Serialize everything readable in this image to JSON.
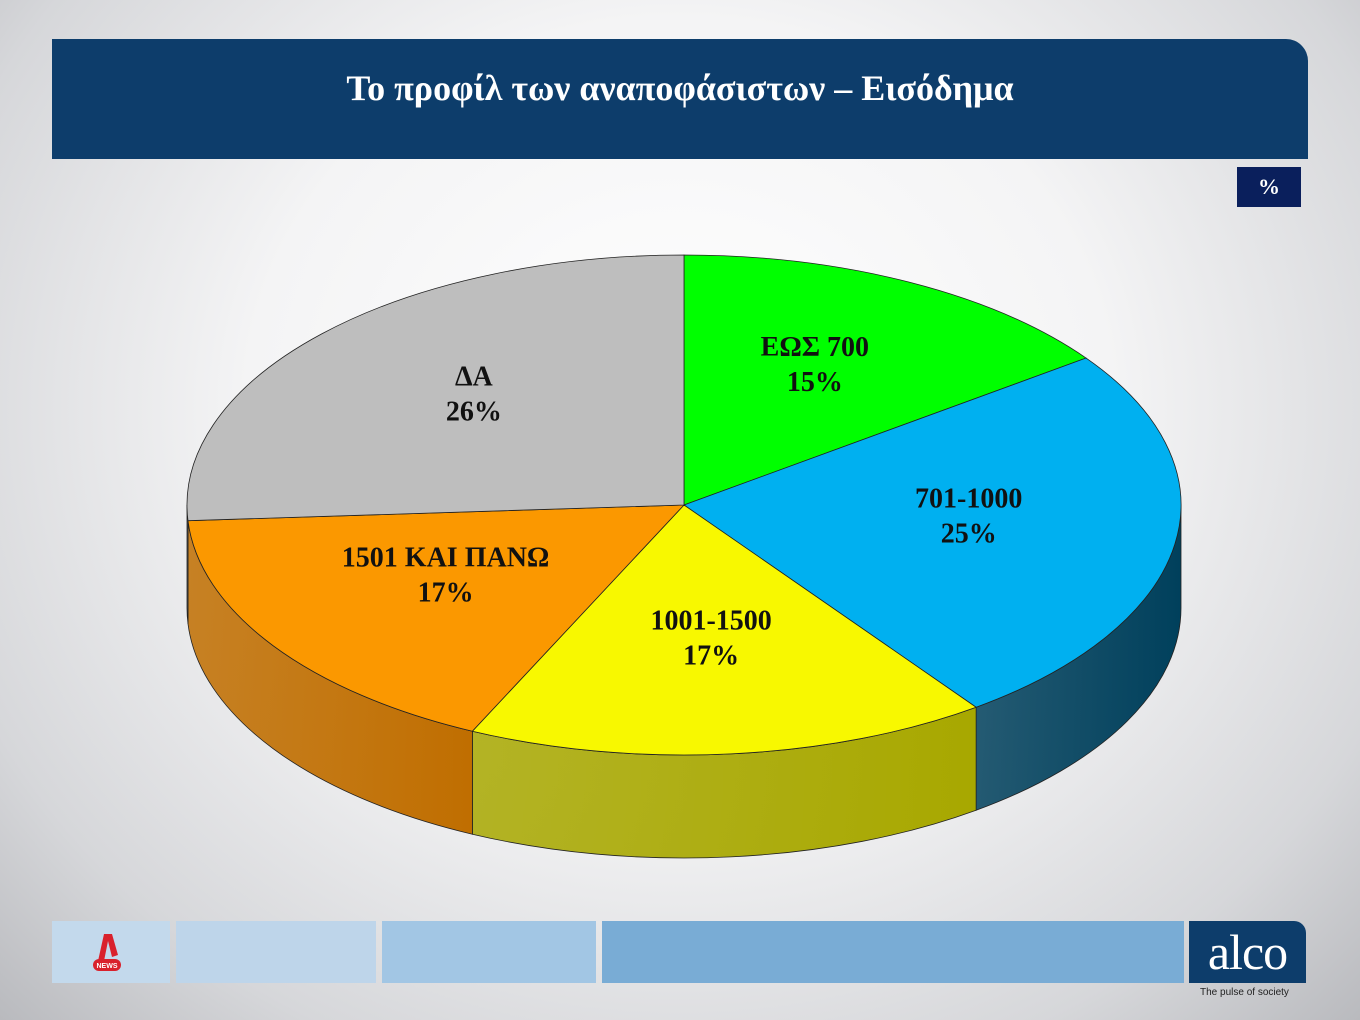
{
  "header": {
    "title": "Το προφίλ των αναποφάσιστων – Εισόδημα"
  },
  "unit_badge": "%",
  "chart_data": {
    "type": "pie",
    "style": "3d",
    "title": "Το προφίλ των αναποφάσιστων – Εισόδημα",
    "unit": "%",
    "slices": [
      {
        "label": "ΕΩΣ 700",
        "value": 15,
        "display": "15%",
        "color": "#00ff00",
        "side": "#00a000"
      },
      {
        "label": "701-1000",
        "value": 25,
        "display": "25%",
        "color": "#00b0f0",
        "side": "#00405c"
      },
      {
        "label": "1001-1500",
        "value": 17,
        "display": "17%",
        "color": "#f8f800",
        "side": "#a8a800"
      },
      {
        "label": "1501 ΚΑΙ ΠΑΝΩ",
        "value": 17,
        "display": "17%",
        "color": "#fb9800",
        "side": "#c06e00"
      },
      {
        "label": "ΔΑ",
        "value": 26,
        "display": "26%",
        "color": "#bebebe",
        "side": "#7a7a7a"
      }
    ]
  },
  "footer": {
    "left_logo": "NEWS",
    "brand": "alco",
    "tagline": "The pulse of society"
  }
}
